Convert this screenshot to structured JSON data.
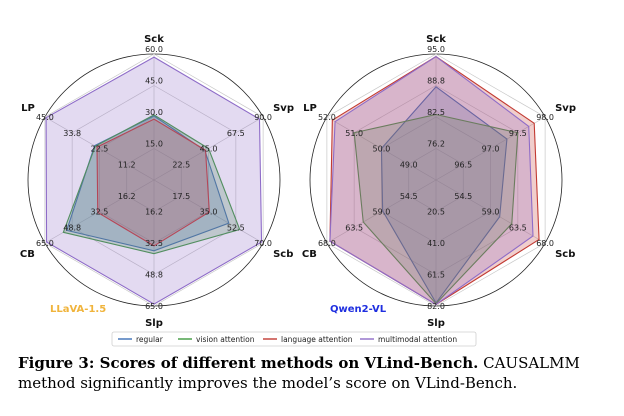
{
  "chart_data": [
    {
      "type": "radar",
      "model_label": "LLaVA-1.5",
      "model_label_color": "#f0b43c",
      "axes": [
        "Sck",
        "Svp",
        "Scb",
        "Slp",
        "CB",
        "LP"
      ],
      "axis_tick_labels": [
        [
          "60.0",
          "45.0",
          "30.0",
          "15.0"
        ],
        [
          "90.0",
          "67.5",
          "45.0",
          "22.5"
        ],
        [
          "70.0",
          "52.5",
          "35.0",
          "17.5"
        ],
        [
          "65.0",
          "48.8",
          "32.5",
          "16.2"
        ],
        [
          "65.0",
          "48.8",
          "32.5",
          "16.2"
        ],
        [
          "45.0",
          "33.8",
          "22.5",
          "11.2"
        ]
      ],
      "axis_max": [
        60.0,
        90.0,
        70.0,
        65.0,
        65.0,
        45.0
      ],
      "series": [
        {
          "name": "regular",
          "color": "#3b6fb6",
          "values": [
            30.5,
            42.0,
            48.0,
            36.5,
            52.0,
            24.5
          ]
        },
        {
          "name": "vision attention",
          "color": "#3e9a3e",
          "values": [
            31.0,
            45.0,
            55.0,
            38.0,
            54.0,
            24.2
          ]
        },
        {
          "name": "language attention",
          "color": "#c23a32",
          "values": [
            29.0,
            42.5,
            35.5,
            34.0,
            33.5,
            23.5
          ]
        },
        {
          "name": "multimodal attention",
          "color": "#8e6cc8",
          "values": [
            58.5,
            87.0,
            69.0,
            64.0,
            64.0,
            44.5
          ]
        }
      ]
    },
    {
      "type": "radar",
      "model_label": "Qwen2-VL",
      "model_label_color": "#1f2fe0",
      "axes": [
        "Sck",
        "Svp",
        "Scb",
        "Slp",
        "CB",
        "LP"
      ],
      "axis_tick_labels": [
        [
          "95.0",
          "88.8",
          "82.5",
          "76.2"
        ],
        [
          "98.0",
          "97.5",
          "97.0",
          "96.5"
        ],
        [
          "68.0",
          "63.5",
          "59.0",
          "54.5"
        ],
        [
          "82.0",
          "61.5",
          "41.0",
          "20.5"
        ],
        [
          "68.0",
          "63.5",
          "59.0",
          "54.5"
        ],
        [
          "52.0",
          "51.0",
          "50.0",
          "49.0"
        ]
      ],
      "axis_min": [
        70.0,
        96.0,
        50.0,
        0.0,
        50.0,
        48.0
      ],
      "axis_max": [
        95.0,
        98.0,
        68.0,
        82.0,
        68.0,
        52.0
      ],
      "series": [
        {
          "name": "regular",
          "color": "#3b6fb6",
          "values": [
            88.5,
            97.3,
            60.5,
            80.0,
            58.8,
            50.0
          ]
        },
        {
          "name": "vision attention",
          "color": "#3e9a3e",
          "values": [
            83.0,
            97.5,
            62.5,
            80.5,
            62.0,
            51.0
          ]
        },
        {
          "name": "language attention",
          "color": "#c23a32",
          "values": [
            94.5,
            97.8,
            67.0,
            81.0,
            67.5,
            51.8
          ]
        },
        {
          "name": "multimodal attention",
          "color": "#8e6cc8",
          "values": [
            94.5,
            97.7,
            66.0,
            81.0,
            67.5,
            51.7
          ]
        }
      ]
    }
  ],
  "legend": [
    "regular",
    "vision attention",
    "language attention",
    "multimodal attention"
  ],
  "caption": {
    "head": "Figure 3: Scores of different methods on VLind-Bench.",
    "body_prefix": " CAUSALMM",
    "body_rest": " method significantly improves the model’s score on VLind-Bench."
  }
}
